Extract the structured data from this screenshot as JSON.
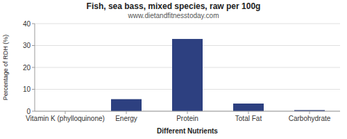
{
  "chart_data": {
    "type": "bar",
    "title": "Fish, sea bass, mixed species, raw per 100g",
    "subtitle": "www.dietandfitnesstoday.com",
    "xlabel": "Different Nutrients",
    "ylabel": "Percentage of RDH (%)",
    "categories": [
      "Vitamin K (phylloquinone)",
      "Energy",
      "Protein",
      "Total Fat",
      "Carbohydrate"
    ],
    "values": [
      0,
      5.5,
      33.0,
      3.5,
      0.5
    ],
    "color": "#2d4080",
    "ylim": [
      0,
      40
    ],
    "yticks": [
      0,
      10,
      20,
      30,
      40
    ],
    "grid": true
  }
}
